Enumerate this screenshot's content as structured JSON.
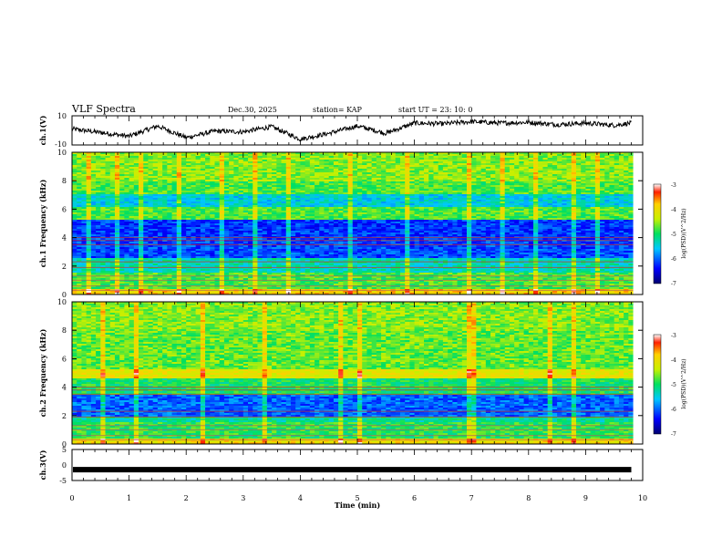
{
  "header": {
    "title": "VLF Spectra",
    "date": "Dec.30, 2025",
    "station": "station= KAP",
    "start": "start  UT =   23: 10: 0"
  },
  "chart_data": [
    {
      "type": "line",
      "name": "ch1-voltage",
      "ylabel": "ch.1(V)",
      "ylim": [
        -10,
        10
      ],
      "yticks": [
        "10",
        "-10"
      ],
      "x_min": [
        0,
        0.5,
        1,
        1.5,
        2,
        2.5,
        3,
        3.5,
        4,
        4.5,
        5,
        5.5,
        6,
        6.5,
        7,
        7.5,
        8,
        8.5,
        9,
        9.5,
        9.8
      ],
      "y_volts": [
        1,
        -1.5,
        -4,
        3,
        -5,
        -0.5,
        -1,
        2.5,
        -6,
        -2,
        3,
        -2,
        5,
        4.5,
        6,
        5,
        5.5,
        4,
        5,
        3.5,
        5
      ],
      "line_color": "#000000"
    },
    {
      "type": "heatmap",
      "name": "ch1-spectrogram",
      "ylabel": "ch.1 Frequency (kHz)",
      "ylim": [
        0,
        10
      ],
      "yticks": [
        "0",
        "2",
        "4",
        "6",
        "8",
        "10"
      ],
      "colorbar": {
        "label": "log(PSD)(V^2/Hz)",
        "range": [
          -7,
          -3
        ],
        "ticks": [
          "-3",
          "-4",
          "-5",
          "-6",
          "-7"
        ]
      }
    },
    {
      "type": "heatmap",
      "name": "ch2-spectrogram",
      "ylabel": "ch.2 Frequency (kHz)",
      "ylim": [
        0,
        10
      ],
      "yticks": [
        "0",
        "2",
        "4",
        "6",
        "8",
        "10"
      ],
      "colorbar": {
        "label": "log(PSD)(V^2/Hz)",
        "range": [
          -7,
          -3
        ],
        "ticks": [
          "-3",
          "-4",
          "-5",
          "-6",
          "-7"
        ]
      }
    },
    {
      "type": "line",
      "name": "ch3-voltage",
      "ylabel": "ch.3(V)",
      "ylim": [
        -5,
        5
      ],
      "yticks": [
        "5",
        "0",
        "-5"
      ],
      "level": -1.5,
      "xlabel": "Time  (min)",
      "xlim": [
        0,
        10
      ],
      "xticks": [
        "0",
        "1",
        "2",
        "3",
        "4",
        "5",
        "6",
        "7",
        "8",
        "9",
        "10"
      ]
    }
  ]
}
